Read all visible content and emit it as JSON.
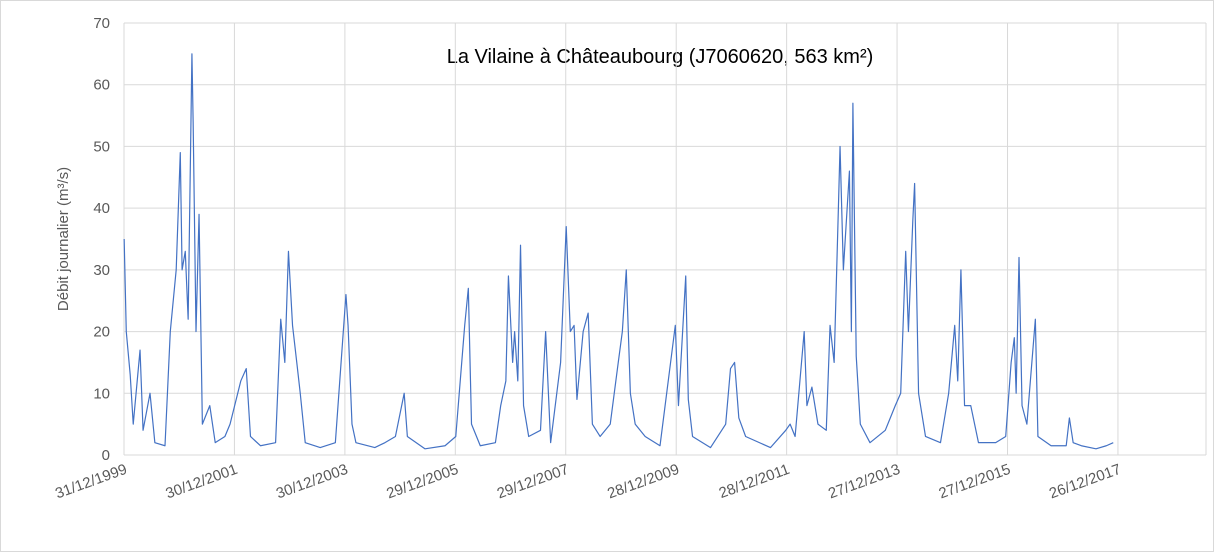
{
  "chart_data": {
    "type": "line",
    "title": "La Vilaine à Châteaubourg (J7060620, 563 km²)",
    "y_label": "Débit journalier (m³/s)",
    "grid": true,
    "xlim": [
      "1999-12-31",
      "2019-07-31"
    ],
    "xticks": [
      {
        "value": "1999-12-31",
        "label": "31/12/1999"
      },
      {
        "value": "2001-12-30",
        "label": "30/12/2001"
      },
      {
        "value": "2003-12-30",
        "label": "30/12/2003"
      },
      {
        "value": "2005-12-29",
        "label": "29/12/2005"
      },
      {
        "value": "2007-12-29",
        "label": "29/12/2007"
      },
      {
        "value": "2009-12-28",
        "label": "28/12/2009"
      },
      {
        "value": "2011-12-28",
        "label": "28/12/2011"
      },
      {
        "value": "2013-12-27",
        "label": "27/12/2013"
      },
      {
        "value": "2015-12-27",
        "label": "27/12/2015"
      },
      {
        "value": "2017-12-26",
        "label": "26/12/2017"
      }
    ],
    "ylim": [
      0,
      70
    ],
    "yticks": [
      0,
      10,
      20,
      30,
      40,
      50,
      60,
      70
    ],
    "x": [
      "2000-01-01",
      "2000-01-15",
      "2000-02-10",
      "2000-03-01",
      "2000-04-15",
      "2000-05-05",
      "2000-06-20",
      "2000-07-22",
      "2000-09-27",
      "2000-11-01",
      "2000-12-10",
      "2001-01-06",
      "2001-01-18",
      "2001-02-08",
      "2001-02-27",
      "2001-03-24",
      "2001-04-01",
      "2001-04-20",
      "2001-05-10",
      "2001-06-01",
      "2001-07-20",
      "2001-08-25",
      "2001-10-28",
      "2001-12-01",
      "2002-02-10",
      "2002-03-18",
      "2002-04-15",
      "2002-06-20",
      "2002-09-28",
      "2002-11-01",
      "2002-11-28",
      "2002-12-22",
      "2003-01-18",
      "2003-02-15",
      "2003-03-10",
      "2003-04-12",
      "2003-07-20",
      "2003-10-28",
      "2004-01-06",
      "2004-01-20",
      "2004-02-15",
      "2004-03-12",
      "2004-07-15",
      "2004-09-20",
      "2004-11-28",
      "2005-01-25",
      "2005-02-15",
      "2005-06-12",
      "2005-10-22",
      "2006-01-01",
      "2006-03-01",
      "2006-03-25",
      "2006-04-15",
      "2006-06-12",
      "2006-09-20",
      "2006-10-25",
      "2006-11-28",
      "2006-12-15",
      "2007-01-12",
      "2007-01-25",
      "2007-02-15",
      "2007-03-05",
      "2007-03-25",
      "2007-04-28",
      "2007-07-15",
      "2007-08-18",
      "2007-09-20",
      "2007-11-25",
      "2008-01-01",
      "2008-01-28",
      "2008-02-22",
      "2008-03-12",
      "2008-04-22",
      "2008-05-25",
      "2008-06-22",
      "2008-08-12",
      "2008-10-18",
      "2008-12-10",
      "2009-01-06",
      "2009-02-01",
      "2009-02-28",
      "2009-04-01",
      "2009-06-06",
      "2009-09-12",
      "2009-12-22",
      "2010-01-12",
      "2010-03-01",
      "2010-03-18",
      "2010-04-15",
      "2010-08-12",
      "2010-11-20",
      "2010-12-22",
      "2011-01-18",
      "2011-02-15",
      "2011-04-01",
      "2011-09-12",
      "2011-12-22",
      "2012-01-20",
      "2012-02-22",
      "2012-04-22",
      "2012-05-10",
      "2012-06-12",
      "2012-07-22",
      "2012-09-15",
      "2012-10-10",
      "2012-11-06",
      "2012-12-03",
      "2012-12-15",
      "2013-01-06",
      "2013-02-15",
      "2013-02-28",
      "2013-03-10",
      "2013-04-01",
      "2013-04-28",
      "2013-07-01",
      "2013-10-10",
      "2013-12-15",
      "2014-01-20",
      "2014-02-22",
      "2014-03-12",
      "2014-04-10",
      "2014-04-22",
      "2014-05-18",
      "2014-07-03",
      "2014-10-10",
      "2014-12-03",
      "2015-01-12",
      "2015-02-01",
      "2015-02-22",
      "2015-03-18",
      "2015-04-28",
      "2015-06-18",
      "2015-10-10",
      "2015-12-15",
      "2016-01-20",
      "2016-02-10",
      "2016-02-22",
      "2016-03-12",
      "2016-04-01",
      "2016-05-03",
      "2016-06-28",
      "2016-07-15",
      "2016-10-10",
      "2017-01-18",
      "2017-02-08",
      "2017-03-05",
      "2017-04-28",
      "2017-08-03",
      "2017-10-10",
      "2017-11-25"
    ],
    "series": [
      {
        "name": "Débit journalier",
        "color": "#4472c4",
        "values": [
          35,
          20,
          13,
          5,
          17,
          4,
          10,
          2,
          1.5,
          20,
          30,
          49,
          30,
          33,
          22,
          65,
          54,
          20,
          39,
          5,
          8,
          2,
          3,
          5,
          12,
          14,
          3,
          1.5,
          2,
          22,
          15,
          33,
          21,
          15,
          10,
          2,
          1.2,
          2,
          26,
          21,
          5,
          2,
          1.2,
          2,
          3,
          10,
          3,
          1,
          1.5,
          3,
          21,
          27,
          5,
          1.5,
          2,
          8,
          12,
          29,
          15,
          20,
          12,
          34,
          8,
          3,
          4,
          20,
          2,
          15,
          37,
          20,
          21,
          9,
          20,
          23,
          5,
          3,
          5,
          15,
          20,
          30,
          10,
          5,
          3,
          1.5,
          21,
          8,
          29,
          9,
          3,
          1.2,
          5,
          14,
          15,
          6,
          3,
          1.2,
          4,
          5,
          3,
          20,
          8,
          11,
          5,
          4,
          21,
          15,
          39,
          50,
          30,
          46,
          20,
          57,
          16,
          5,
          2,
          4,
          8,
          10,
          33,
          20,
          38,
          44,
          10,
          3,
          2,
          10,
          21,
          12,
          30,
          8,
          8,
          2,
          2,
          3,
          15,
          19,
          10,
          32,
          8,
          5,
          22,
          3,
          1.5,
          1.5,
          6,
          2,
          1.5,
          1,
          1.5,
          2
        ]
      }
    ]
  }
}
